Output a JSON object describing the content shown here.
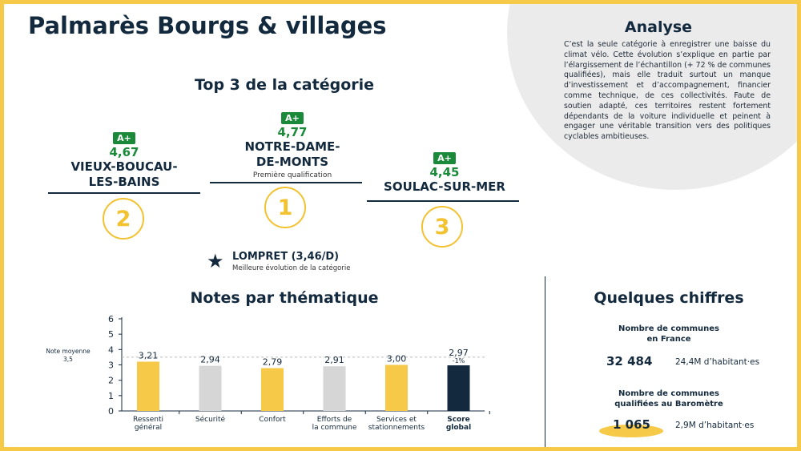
{
  "title": "Palmarès Bourgs & villages",
  "analyse": {
    "title": "Analyse",
    "text": "C’est la seule catégorie à enregistrer une baisse du climat vélo. Cette évolution s’explique en partie par l’élargissement de l’échantillon (+ 72 % de communes qualifiées), mais elle traduit surtout un manque d’investissement et d’accompagnement, financier comme technique, de ces collectivités. Faute de soutien adapté, ces territoires restent fortement dépendants de la voiture individuelle et peinent à engager une véritable transition vers des politiques cyclables ambitieuses."
  },
  "top3": {
    "title": "Top 3 de la catégorie",
    "first": {
      "badge": "A+",
      "score": "4,77",
      "name_line1": "NOTRE-DAME-",
      "name_line2": "DE-MONTS",
      "sub": "Première qualification",
      "rank": "1"
    },
    "second": {
      "badge": "A+",
      "score": "4,67",
      "name_line1": "VIEUX-BOUCAU-",
      "name_line2": "LES-BAINS",
      "rank": "2"
    },
    "third": {
      "badge": "A+",
      "score": "4,45",
      "name_line1": "SOULAC-SUR-MER",
      "rank": "3"
    }
  },
  "evolution": {
    "label": "LOMPRET (3,46/D)",
    "sub": "Meilleure évolution de la catégorie",
    "icon": "star-icon"
  },
  "notes": {
    "title": "Notes par thématique"
  },
  "chiffres": {
    "title": "Quelques chiffres",
    "france_label_line1": "Nombre de communes",
    "france_label_line2": "en France",
    "france_count": "32 484",
    "france_habitants": "24,4M d’habitant·es",
    "barometre_label_line1": "Nombre de communes",
    "barometre_label_line2": "qualifiées au Baromètre",
    "barometre_count": "1 065",
    "barometre_habitants": "2,9M d’habitant·es"
  },
  "chart_data": {
    "type": "bar",
    "categories": [
      [
        "Ressenti",
        "général"
      ],
      [
        "Sécurité"
      ],
      [
        "Confort"
      ],
      [
        "Efforts de",
        "la commune"
      ],
      [
        "Services et",
        "stationnements"
      ],
      [
        "Score",
        "global"
      ]
    ],
    "values": [
      3.21,
      2.94,
      2.79,
      2.91,
      3.0,
      2.97
    ],
    "value_labels": [
      "3,21",
      "2,94",
      "2,79",
      "2,91",
      "3,00",
      "2,97"
    ],
    "extra_labels": [
      "",
      "",
      "",
      "",
      "",
      "-1%"
    ],
    "bar_colors": [
      "#f7c948",
      "#d6d6d6",
      "#f7c948",
      "#d6d6d6",
      "#f7c948",
      "#13293d"
    ],
    "bold_categories": [
      false,
      false,
      false,
      false,
      false,
      true
    ],
    "ylim": [
      0,
      6
    ],
    "yticks": [
      "0",
      "1",
      "2",
      "3",
      "4",
      "5",
      "6"
    ],
    "reference": {
      "value": 3.5,
      "label_line1": "Note moyenne",
      "label_line2": "3,5"
    }
  }
}
